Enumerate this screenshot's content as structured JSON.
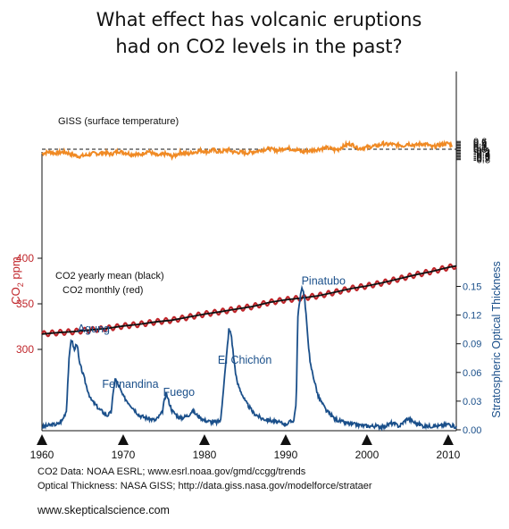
{
  "chart_data": {
    "type": "line",
    "title": [
      "What effect has volcanic eruptions",
      "had on CO2 levels in the past?"
    ],
    "x_ticks": [
      1960,
      1970,
      1980,
      1990,
      2000,
      2010
    ],
    "left_axis": {
      "label_main": "CO",
      "label_sub": "2",
      "label_tail": " ppm",
      "ticks": [
        300,
        350,
        400
      ],
      "color": "#c0262b"
    },
    "right_axis_temperature": {
      "ticks": [
        "0.6",
        "0.5",
        "0.4",
        "0.3",
        "0.2",
        "0.1",
        "0.0",
        "-0.1",
        "-0.2",
        "-0.3",
        "-0.4",
        "-0.5",
        "-0.6",
        "-0.7",
        "-0.8"
      ],
      "reference_line": 0.0
    },
    "right_axis_optical": {
      "label": "Stratospheric Optical Thickness",
      "ticks": [
        "0.15",
        "0.12",
        "0.09",
        "0.06",
        "0.03",
        "0.00"
      ],
      "color": "#1a4f8a"
    },
    "series": [
      {
        "name": "GISS (surface temperature)",
        "color": "#f08a24",
        "x": [
          1960,
          1960.5,
          1961,
          1961.5,
          1962,
          1962.5,
          1963,
          1963.5,
          1964,
          1964.5,
          1965,
          1965.5,
          1966,
          1966.5,
          1967,
          1967.5,
          1968,
          1968.5,
          1969,
          1969.5,
          1970,
          1970.5,
          1971,
          1971.5,
          1972,
          1972.5,
          1973,
          1973.5,
          1974,
          1974.5,
          1975,
          1975.5,
          1976,
          1976.5,
          1977,
          1977.5,
          1978,
          1978.5,
          1979,
          1979.5,
          1980,
          1980.5,
          1981,
          1981.5,
          1982,
          1982.5,
          1983,
          1983.5,
          1984,
          1984.5,
          1985,
          1985.5,
          1986,
          1986.5,
          1987,
          1987.5,
          1988,
          1988.5,
          1989,
          1989.5,
          1990,
          1990.5,
          1991,
          1991.5,
          1992,
          1992.5,
          1993,
          1993.5,
          1994,
          1994.5,
          1995,
          1995.5,
          1996,
          1996.5,
          1997,
          1997.5,
          1998,
          1998.5,
          1999,
          1999.5,
          2000,
          2000.5,
          2001,
          2001.5,
          2002,
          2002.5,
          2003,
          2003.5,
          2004,
          2004.5,
          2005,
          2005.5,
          2006,
          2006.5,
          2007,
          2007.5,
          2008,
          2008.5,
          2009,
          2009.5,
          2010,
          2010.5
        ],
        "y": [
          -0.35,
          -0.25,
          -0.2,
          -0.3,
          -0.28,
          -0.22,
          -0.25,
          -0.35,
          -0.45,
          -0.55,
          -0.5,
          -0.45,
          -0.38,
          -0.3,
          -0.35,
          -0.25,
          -0.3,
          -0.38,
          -0.25,
          -0.15,
          -0.25,
          -0.3,
          -0.4,
          -0.35,
          -0.45,
          -0.3,
          -0.15,
          -0.28,
          -0.45,
          -0.5,
          -0.35,
          -0.4,
          -0.55,
          -0.45,
          -0.25,
          -0.3,
          -0.35,
          -0.25,
          -0.2,
          -0.1,
          -0.15,
          -0.2,
          -0.05,
          -0.15,
          -0.2,
          -0.1,
          -0.05,
          -0.2,
          -0.25,
          -0.22,
          -0.3,
          -0.25,
          -0.2,
          -0.15,
          -0.05,
          0.0,
          0.05,
          -0.05,
          -0.1,
          0.0,
          0.1,
          0.05,
          0.0,
          -0.05,
          -0.2,
          -0.15,
          -0.1,
          -0.05,
          0.0,
          0.05,
          0.1,
          0.05,
          -0.05,
          0.0,
          0.2,
          0.35,
          0.4,
          0.25,
          0.05,
          0.1,
          0.15,
          0.2,
          0.25,
          0.3,
          0.45,
          0.35,
          0.4,
          0.3,
          0.35,
          0.25,
          0.45,
          0.35,
          0.3,
          0.4,
          0.4,
          0.35,
          0.15,
          0.25,
          0.35,
          0.4,
          0.45,
          0.3
        ]
      },
      {
        "name": "CO2 monthly (red)",
        "color": "#c0262b",
        "x": [
          1960,
          1962,
          1964,
          1966,
          1968,
          1970,
          1972,
          1974,
          1976,
          1978,
          1980,
          1982,
          1984,
          1986,
          1988,
          1990,
          1992,
          1994,
          1996,
          1998,
          2000,
          2002,
          2004,
          2006,
          2008,
          2010,
          2011
        ],
        "y": [
          316.9,
          318.4,
          319.6,
          321.4,
          323.0,
          325.7,
          327.5,
          330.2,
          332.1,
          335.4,
          338.7,
          341.4,
          344.4,
          347.2,
          351.6,
          354.4,
          356.4,
          358.8,
          362.6,
          366.7,
          369.6,
          373.2,
          377.5,
          381.9,
          385.6,
          389.9,
          391.6
        ],
        "seasonal_amplitude_ppm": 3
      },
      {
        "name": "CO2 yearly mean (black)",
        "color": "#111111",
        "x": [
          1960,
          1962,
          1964,
          1966,
          1968,
          1970,
          1972,
          1974,
          1976,
          1978,
          1980,
          1982,
          1984,
          1986,
          1988,
          1990,
          1992,
          1994,
          1996,
          1998,
          2000,
          2002,
          2004,
          2006,
          2008,
          2010,
          2011
        ],
        "y": [
          316.9,
          318.4,
          319.6,
          321.4,
          323.0,
          325.7,
          327.5,
          330.2,
          332.1,
          335.4,
          338.7,
          341.4,
          344.4,
          347.2,
          351.6,
          354.4,
          356.4,
          358.8,
          362.6,
          366.7,
          369.6,
          373.2,
          377.5,
          381.9,
          385.6,
          389.9,
          391.6
        ]
      },
      {
        "name": "Optical Thickness",
        "color": "#1a4f8a",
        "x": [
          1960,
          1961,
          1962,
          1962.5,
          1963,
          1963.3,
          1963.6,
          1964,
          1964.3,
          1964.6,
          1965,
          1965.5,
          1966,
          1967,
          1968,
          1968.5,
          1968.8,
          1969,
          1969.5,
          1970,
          1971,
          1972,
          1973,
          1974,
          1974.8,
          1975,
          1975.3,
          1975.6,
          1976,
          1977,
          1978,
          1978.5,
          1979,
          1980,
          1981,
          1981.5,
          1982,
          1982.3,
          1982.8,
          1983,
          1983.3,
          1983.6,
          1984,
          1985,
          1986,
          1987,
          1988,
          1989,
          1990,
          1991,
          1991.3,
          1991.5,
          1992,
          1992.3,
          1992.6,
          1993,
          1994,
          1995,
          1996,
          1997,
          1998,
          1999,
          2000,
          2001,
          2002,
          2003,
          2004,
          2005,
          2006,
          2007,
          2008,
          2009,
          2010,
          2011
        ],
        "y": [
          0.003,
          0.005,
          0.006,
          0.01,
          0.02,
          0.07,
          0.096,
          0.083,
          0.092,
          0.07,
          0.06,
          0.045,
          0.032,
          0.022,
          0.015,
          0.018,
          0.04,
          0.054,
          0.045,
          0.035,
          0.025,
          0.015,
          0.012,
          0.01,
          0.018,
          0.028,
          0.038,
          0.03,
          0.02,
          0.012,
          0.015,
          0.02,
          0.016,
          0.01,
          0.008,
          0.008,
          0.01,
          0.04,
          0.085,
          0.105,
          0.1,
          0.075,
          0.05,
          0.03,
          0.018,
          0.012,
          0.01,
          0.008,
          0.006,
          0.01,
          0.03,
          0.12,
          0.15,
          0.14,
          0.11,
          0.07,
          0.035,
          0.02,
          0.012,
          0.008,
          0.006,
          0.005,
          0.004,
          0.004,
          0.003,
          0.007,
          0.004,
          0.012,
          0.007,
          0.004,
          0.004,
          0.004,
          0.006,
          0.003
        ]
      }
    ],
    "legend": {
      "giss": "GISS (surface temperature)",
      "co2_yearly": "CO2 yearly mean (black)",
      "co2_monthly": "CO2 monthly (red)"
    },
    "volcanoes": [
      {
        "name": "Agung",
        "year": 1963.5
      },
      {
        "name": "Fernandina",
        "year": 1968.5
      },
      {
        "name": "Fuego",
        "year": 1974.8
      },
      {
        "name": "El Chichón",
        "year": 1982.3
      },
      {
        "name": "Pinatubo",
        "year": 1991.5
      }
    ]
  },
  "source": {
    "line1": "CO2 Data: NOAA ESRL; www.esrl.noaa.gov/gmd/ccgg/trends",
    "line2": "Optical Thickness: NASA GISS; http://data.giss.nasa.gov/modelforce/strataer"
  },
  "credit": "www.skepticalscience.com"
}
